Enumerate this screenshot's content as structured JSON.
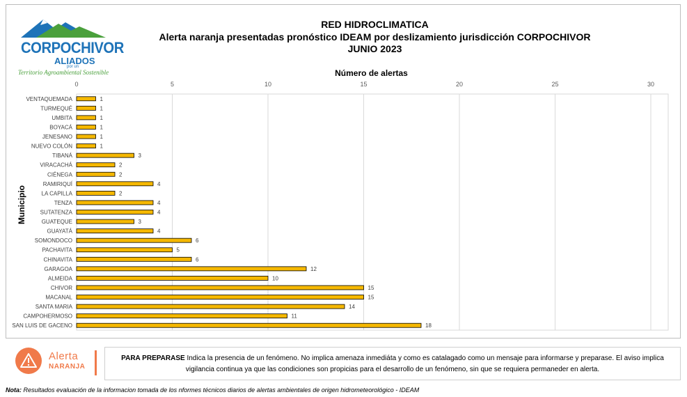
{
  "logo": {
    "name": "CORPOCHIVOR",
    "aliados": "ALIADOS",
    "por_un": "por un",
    "tagline": "Territorio Agroambiental Sostenible"
  },
  "header": {
    "line1": "RED HIDROCLIMATICA",
    "line2": "Alerta naranja presentadas pronóstico IDEAM por deslizamiento jurisdicción CORPOCHIVOR",
    "line3": "JUNIO 2023"
  },
  "chart_data": {
    "type": "bar",
    "orientation": "horizontal",
    "xlabel": "Número de alertas",
    "ylabel": "Municipio",
    "xlim": [
      0,
      30
    ],
    "xticks": [
      0,
      5,
      10,
      15,
      20,
      25,
      30
    ],
    "grid": true,
    "bar_color": "#f5b800",
    "categories": [
      "VENTAQUEMADA",
      "TURMEQUÉ",
      "UMBITA",
      "BOYACÁ",
      "JENESANO",
      "NUEVO COLÓN",
      "TIBANÁ",
      "VIRACACHÁ",
      "CIÉNEGA",
      "RAMIRIQUÍ",
      "LA CAPILLA",
      "TENZA",
      "SUTATENZA",
      "GUATEQUE",
      "GUAYATÁ",
      "SOMONDOCO",
      "PACHAVITA",
      "CHINAVITA",
      "GARAGOA",
      "ALMEIDA",
      "CHIVOR",
      "MACANAL",
      "SANTA MARIA",
      "CAMPOHERMOSO",
      "SAN LUIS DE GACENO"
    ],
    "values": [
      1,
      1,
      1,
      1,
      1,
      1,
      3,
      2,
      2,
      4,
      2,
      4,
      4,
      3,
      4,
      6,
      5,
      6,
      12,
      10,
      15,
      15,
      14,
      11,
      18
    ]
  },
  "alert": {
    "word": "Alerta",
    "level": "NARANJA",
    "color": "#f07a4a",
    "lead": "PARA PREPARASE",
    "text": " Indica la presencia de un fenómeno. No implica amenaza inmediáta y como es catalagado como un mensaje para informarse y preparase. El aviso implica vigilancia continua ya que las condiciones son propicias para el desarrollo de un fenómeno, sin que se requiera permaneder en alerta."
  },
  "note": {
    "label": "Nota:",
    "text": " Resultados evaluación de la informacion tomada de los nformes técnicos diarios de alertas ambientales de origen hidrometeorológico - IDEAM"
  }
}
